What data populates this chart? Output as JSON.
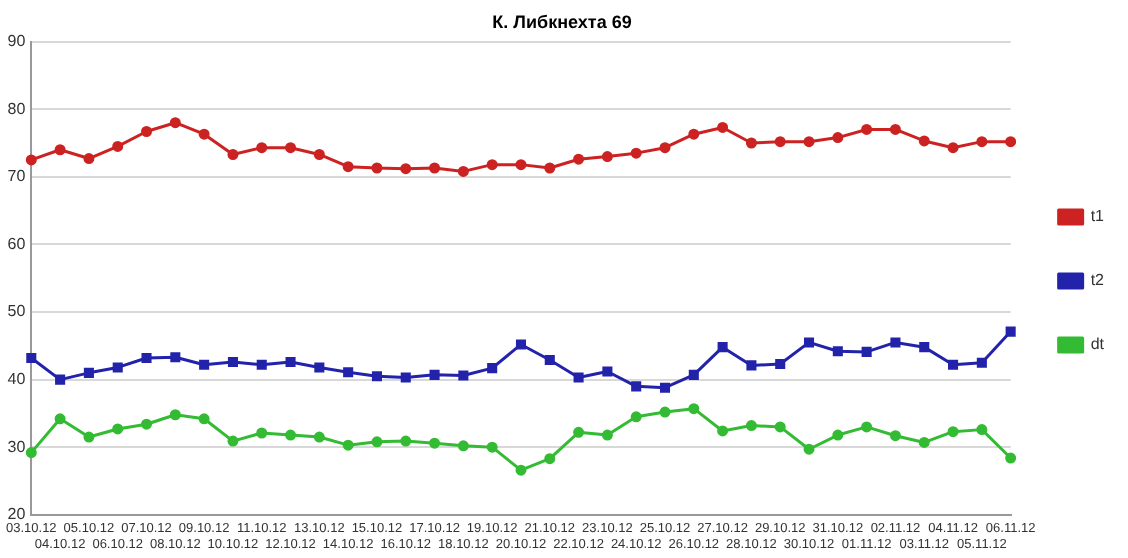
{
  "chart_data": {
    "type": "line",
    "title": "К. Либкнехта 69",
    "categories": [
      "03.10.12",
      "04.10.12",
      "05.10.12",
      "06.10.12",
      "07.10.12",
      "08.10.12",
      "09.10.12",
      "10.10.12",
      "11.10.12",
      "12.10.12",
      "13.10.12",
      "14.10.12",
      "15.10.12",
      "16.10.12",
      "17.10.12",
      "18.10.12",
      "19.10.12",
      "20.10.12",
      "21.10.12",
      "22.10.12",
      "23.10.12",
      "24.10.12",
      "25.10.12",
      "26.10.12",
      "27.10.12",
      "28.10.12",
      "29.10.12",
      "30.10.12",
      "31.10.12",
      "01.11.12",
      "02.11.12",
      "03.11.12",
      "04.11.12",
      "05.11.12",
      "06.11.12"
    ],
    "series": [
      {
        "name": "t1",
        "color": "#cc2222",
        "marker": "circle",
        "values": [
          72.5,
          74,
          72.7,
          74.5,
          76.7,
          78,
          76.3,
          73.3,
          74.3,
          74.3,
          73.3,
          71.5,
          71.3,
          71.2,
          71.3,
          70.8,
          71.8,
          71.8,
          71.3,
          72.6,
          73,
          73.5,
          74.3,
          76.3,
          77.3,
          75,
          75.2,
          75.2,
          75.8,
          77,
          77,
          75.3,
          74.3,
          75.2,
          75.2
        ]
      },
      {
        "name": "t2",
        "color": "#2222aa",
        "marker": "square",
        "values": [
          43.2,
          40,
          41,
          41.8,
          43.2,
          43.3,
          42.2,
          42.6,
          42.2,
          42.6,
          41.8,
          41.1,
          40.5,
          40.3,
          40.7,
          40.6,
          41.7,
          45.2,
          42.9,
          40.3,
          41.2,
          39,
          38.8,
          40.7,
          44.8,
          42.1,
          42.3,
          45.5,
          44.2,
          44.1,
          45.5,
          44.8,
          42.2,
          42.5,
          47.1
        ]
      },
      {
        "name": "dt",
        "color": "#33bb33",
        "marker": "circle",
        "values": [
          29.2,
          34.2,
          31.5,
          32.7,
          33.4,
          34.8,
          34.2,
          30.9,
          32.1,
          31.8,
          31.5,
          30.3,
          30.8,
          30.9,
          30.6,
          30.2,
          30,
          26.6,
          28.3,
          32.2,
          31.8,
          34.5,
          35.2,
          35.7,
          32.4,
          33.2,
          33,
          29.7,
          31.8,
          33,
          31.7,
          30.7,
          32.3,
          32.6,
          28.4
        ]
      }
    ],
    "ylim": [
      20,
      90
    ],
    "yticks": [
      20,
      30,
      40,
      50,
      60,
      70,
      80,
      90
    ],
    "grid": "y",
    "legend": "right"
  }
}
